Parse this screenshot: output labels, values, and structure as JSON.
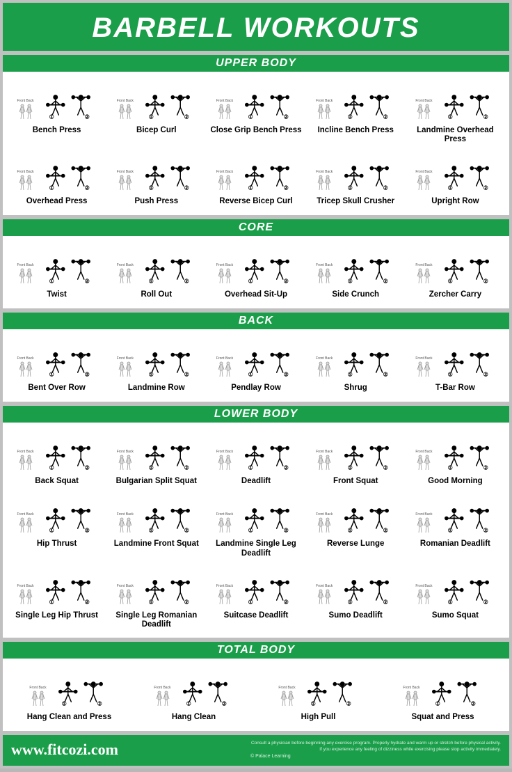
{
  "colors": {
    "green": "#1a9e4a",
    "bg": "#c0c0c0",
    "white": "#ffffff",
    "text": "#000000"
  },
  "title": "BARBELL WORKOUTS",
  "anatomy_label": "Front Back",
  "sections": [
    {
      "header": "UPPER BODY",
      "rows": [
        [
          "Bench Press",
          "Bicep Curl",
          "Close Grip Bench Press",
          "Incline Bench Press",
          "Landmine Overhead Press"
        ],
        [
          "Overhead Press",
          "Push Press",
          "Reverse Bicep Curl",
          "Tricep Skull Crusher",
          "Upright Row"
        ]
      ]
    },
    {
      "header": "CORE",
      "rows": [
        [
          "Twist",
          "Roll Out",
          "Overhead Sit-Up",
          "Side Crunch",
          "Zercher Carry"
        ]
      ]
    },
    {
      "header": "BACK",
      "rows": [
        [
          "Bent Over Row",
          "Landmine Row",
          "Pendlay Row",
          "Shrug",
          "T-Bar Row"
        ]
      ]
    },
    {
      "header": "LOWER BODY",
      "rows": [
        [
          "Back Squat",
          "Bulgarian Split Squat",
          "Deadlift",
          "Front Squat",
          "Good Morning"
        ],
        [
          "Hip Thrust",
          "Landmine Front Squat",
          "Landmine Single Leg Deadlift",
          "Reverse Lunge",
          "Romanian Deadlift"
        ],
        [
          "Single Leg Hip Thrust",
          "Single Leg Romanian Deadlift",
          "Suitcase Deadlift",
          "Sumo Deadlift",
          "Sumo Squat"
        ]
      ]
    },
    {
      "header": "TOTAL BODY",
      "rows": [
        [
          "Hang Clean and Press",
          "Hang Clean",
          "High Pull",
          "Squat and Press"
        ]
      ]
    }
  ],
  "footer": {
    "website": "www.fitcozi.com",
    "disclaimer": "Consult a physician before beginning any exercise program. Properly hydrate and warm up or stretch before physical activity. If you experience any feeling of dizziness while exercising please stop activity immediately.",
    "copyright": "© Palace Learning"
  }
}
